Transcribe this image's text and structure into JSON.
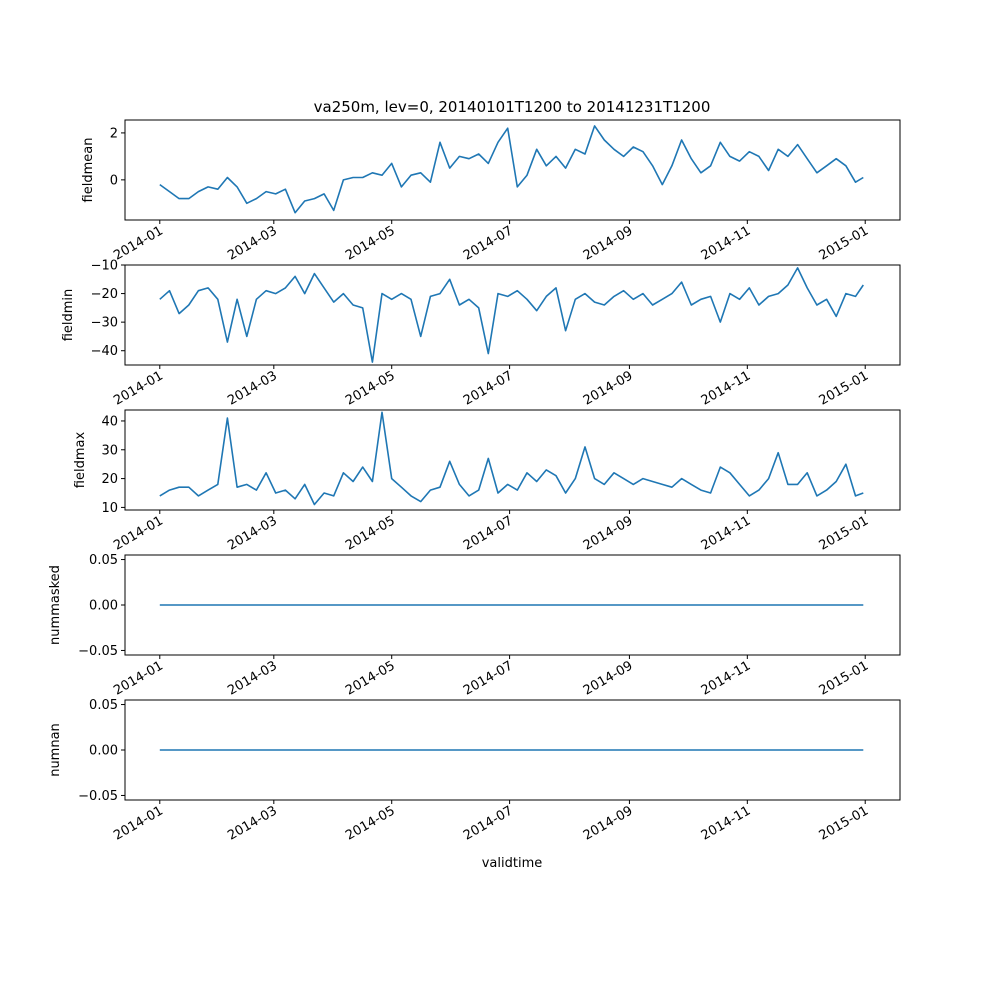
{
  "chart_data": {
    "type": "line",
    "title": "va250m, lev=0, 20140101T1200 to 20141231T1200",
    "xlabel": "validtime",
    "x_unit": "days since 2014-01-01",
    "x_ticks": [
      {
        "day": 0,
        "label": "2014-01"
      },
      {
        "day": 59,
        "label": "2014-03"
      },
      {
        "day": 120,
        "label": "2014-05"
      },
      {
        "day": 181,
        "label": "2014-07"
      },
      {
        "day": 243,
        "label": "2014-09"
      },
      {
        "day": 304,
        "label": "2014-11"
      },
      {
        "day": 365,
        "label": "2015-01"
      }
    ],
    "xlim": [
      -18,
      383
    ],
    "x": [
      0,
      5,
      10,
      15,
      20,
      25,
      30,
      35,
      40,
      45,
      50,
      55,
      60,
      65,
      70,
      75,
      80,
      85,
      90,
      95,
      100,
      105,
      110,
      115,
      120,
      125,
      130,
      135,
      140,
      145,
      150,
      155,
      160,
      165,
      170,
      175,
      180,
      185,
      190,
      195,
      200,
      205,
      210,
      215,
      220,
      225,
      230,
      235,
      240,
      245,
      250,
      255,
      260,
      265,
      270,
      275,
      280,
      285,
      290,
      295,
      300,
      305,
      310,
      315,
      320,
      325,
      330,
      335,
      340,
      345,
      350,
      355,
      360,
      364
    ],
    "series": [
      {
        "name": "fieldmean",
        "ylabel": "fieldmean",
        "color": "#1f77b4",
        "ylim": [
          -1.71,
          2.55
        ],
        "yticks": [
          {
            "v": 2,
            "label": "2"
          },
          {
            "v": 0,
            "label": "0"
          }
        ],
        "values": [
          -0.2,
          -0.5,
          -0.8,
          -0.8,
          -0.5,
          -0.3,
          -0.4,
          0.1,
          -0.3,
          -1.0,
          -0.8,
          -0.5,
          -0.6,
          -0.4,
          -1.4,
          -0.9,
          -0.8,
          -0.6,
          -1.3,
          0.0,
          0.1,
          0.1,
          0.3,
          0.2,
          0.7,
          -0.3,
          0.2,
          0.3,
          -0.1,
          1.6,
          0.5,
          1.0,
          0.9,
          1.1,
          0.7,
          1.6,
          2.2,
          -0.3,
          0.2,
          1.3,
          0.6,
          1.0,
          0.5,
          1.3,
          1.1,
          2.3,
          1.7,
          1.3,
          1.0,
          1.4,
          1.2,
          0.6,
          -0.2,
          0.6,
          1.7,
          0.9,
          0.3,
          0.6,
          1.6,
          1.0,
          0.8,
          1.2,
          1.0,
          0.4,
          1.3,
          1.0,
          1.5,
          0.9,
          0.3,
          0.6,
          0.9,
          0.6,
          -0.1,
          0.1
        ]
      },
      {
        "name": "fieldmin",
        "ylabel": "fieldmin",
        "color": "#1f77b4",
        "ylim": [
          -45,
          -10
        ],
        "yticks": [
          {
            "v": -10,
            "label": "−10"
          },
          {
            "v": -20,
            "label": "−20"
          },
          {
            "v": -30,
            "label": "−30"
          },
          {
            "v": -40,
            "label": "−40"
          }
        ],
        "values": [
          -22,
          -19,
          -27,
          -24,
          -19,
          -18,
          -22,
          -37,
          -22,
          -35,
          -22,
          -19,
          -20,
          -18,
          -14,
          -20,
          -13,
          -18,
          -23,
          -20,
          -24,
          -25,
          -44,
          -20,
          -22,
          -20,
          -22,
          -35,
          -21,
          -20,
          -15,
          -24,
          -22,
          -25,
          -41,
          -20,
          -21,
          -19,
          -22,
          -26,
          -21,
          -18,
          -33,
          -22,
          -20,
          -23,
          -24,
          -21,
          -19,
          -22,
          -20,
          -24,
          -22,
          -20,
          -16,
          -24,
          -22,
          -21,
          -30,
          -20,
          -22,
          -18,
          -24,
          -21,
          -20,
          -17,
          -11,
          -18,
          -24,
          -22,
          -28,
          -20,
          -21,
          -17
        ]
      },
      {
        "name": "fieldmax",
        "ylabel": "fieldmax",
        "color": "#1f77b4",
        "ylim": [
          9.1,
          43.8
        ],
        "yticks": [
          {
            "v": 40,
            "label": "40"
          },
          {
            "v": 30,
            "label": "30"
          },
          {
            "v": 20,
            "label": "20"
          },
          {
            "v": 10,
            "label": "10"
          }
        ],
        "values": [
          14,
          16,
          17,
          17,
          14,
          16,
          18,
          41,
          17,
          18,
          16,
          22,
          15,
          16,
          13,
          18,
          11,
          15,
          14,
          22,
          19,
          24,
          19,
          43,
          20,
          17,
          14,
          12,
          16,
          17,
          26,
          18,
          14,
          16,
          27,
          15,
          18,
          16,
          22,
          19,
          23,
          21,
          15,
          20,
          31,
          20,
          18,
          22,
          20,
          18,
          20,
          19,
          18,
          17,
          20,
          18,
          16,
          15,
          24,
          22,
          18,
          14,
          16,
          20,
          29,
          18,
          18,
          22,
          14,
          16,
          19,
          25,
          14,
          15
        ]
      },
      {
        "name": "nummasked",
        "ylabel": "nummasked",
        "color": "#1f77b4",
        "ylim": [
          -0.055,
          0.055
        ],
        "yticks": [
          {
            "v": 0.05,
            "label": "0.05"
          },
          {
            "v": 0,
            "label": "0.00"
          },
          {
            "v": -0.05,
            "label": "−0.05"
          }
        ],
        "values": [
          0,
          0,
          0,
          0,
          0,
          0,
          0,
          0,
          0,
          0,
          0,
          0,
          0,
          0,
          0,
          0,
          0,
          0,
          0,
          0,
          0,
          0,
          0,
          0,
          0,
          0,
          0,
          0,
          0,
          0,
          0,
          0,
          0,
          0,
          0,
          0,
          0,
          0,
          0,
          0,
          0,
          0,
          0,
          0,
          0,
          0,
          0,
          0,
          0,
          0,
          0,
          0,
          0,
          0,
          0,
          0,
          0,
          0,
          0,
          0,
          0,
          0,
          0,
          0,
          0,
          0,
          0,
          0,
          0,
          0,
          0,
          0,
          0,
          0
        ]
      },
      {
        "name": "numnan",
        "ylabel": "numnan",
        "color": "#1f77b4",
        "ylim": [
          -0.055,
          0.055
        ],
        "yticks": [
          {
            "v": 0.05,
            "label": "0.05"
          },
          {
            "v": 0,
            "label": "0.00"
          },
          {
            "v": -0.05,
            "label": "−0.05"
          }
        ],
        "values": [
          0,
          0,
          0,
          0,
          0,
          0,
          0,
          0,
          0,
          0,
          0,
          0,
          0,
          0,
          0,
          0,
          0,
          0,
          0,
          0,
          0,
          0,
          0,
          0,
          0,
          0,
          0,
          0,
          0,
          0,
          0,
          0,
          0,
          0,
          0,
          0,
          0,
          0,
          0,
          0,
          0,
          0,
          0,
          0,
          0,
          0,
          0,
          0,
          0,
          0,
          0,
          0,
          0,
          0,
          0,
          0,
          0,
          0,
          0,
          0,
          0,
          0,
          0,
          0,
          0,
          0,
          0,
          0,
          0,
          0,
          0,
          0,
          0,
          0
        ]
      }
    ]
  }
}
